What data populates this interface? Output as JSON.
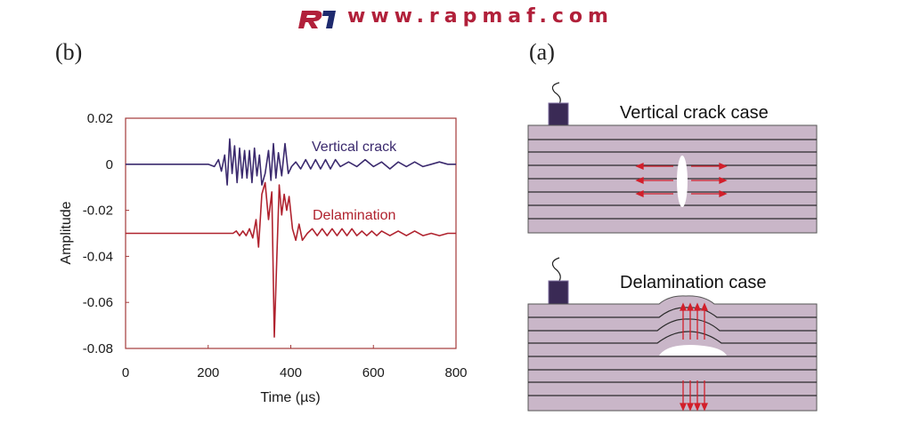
{
  "header": {
    "url_text": "www.rapmaf.com",
    "brand_color": "#b1203a"
  },
  "panels": {
    "left_label": "(b)",
    "right_label": "(a)"
  },
  "chart_data": {
    "type": "line",
    "xlabel": "Time (µs)",
    "ylabel": "Amplitude",
    "xlim": [
      0,
      800
    ],
    "ylim": [
      -0.08,
      0.02
    ],
    "xticks": [
      "0",
      "200",
      "400",
      "600",
      "800"
    ],
    "yticks": [
      "0.02",
      "0",
      "-0.02",
      "-0.04",
      "-0.06",
      "-0.08"
    ],
    "grid": false,
    "series": [
      {
        "name": "Vertical crack",
        "color": "#3b2a6e",
        "points": [
          [
            0,
            0
          ],
          [
            180,
            0
          ],
          [
            200,
            0.0
          ],
          [
            215,
            -0.001
          ],
          [
            225,
            0.002
          ],
          [
            232,
            -0.003
          ],
          [
            240,
            0.004
          ],
          [
            246,
            -0.009
          ],
          [
            252,
            0.011
          ],
          [
            258,
            -0.004
          ],
          [
            264,
            0.008
          ],
          [
            270,
            -0.008
          ],
          [
            276,
            0.007
          ],
          [
            282,
            -0.006
          ],
          [
            288,
            0.006
          ],
          [
            294,
            -0.006
          ],
          [
            300,
            0.006
          ],
          [
            306,
            -0.008
          ],
          [
            312,
            0.007
          ],
          [
            318,
            -0.005
          ],
          [
            324,
            0.004
          ],
          [
            330,
            -0.009
          ],
          [
            338,
            -0.004
          ],
          [
            346,
            0.006
          ],
          [
            352,
            -0.007
          ],
          [
            358,
            0.009
          ],
          [
            364,
            -0.006
          ],
          [
            370,
            0.005
          ],
          [
            378,
            -0.005
          ],
          [
            386,
            0.009
          ],
          [
            394,
            -0.004
          ],
          [
            402,
            -0.001
          ],
          [
            412,
            0.001
          ],
          [
            424,
            -0.002
          ],
          [
            436,
            0.002
          ],
          [
            448,
            -0.002
          ],
          [
            460,
            0.002
          ],
          [
            472,
            -0.002
          ],
          [
            484,
            0.002
          ],
          [
            496,
            -0.002
          ],
          [
            508,
            0.002
          ],
          [
            520,
            -0.001
          ],
          [
            540,
            0.001
          ],
          [
            560,
            -0.001
          ],
          [
            580,
            0.002
          ],
          [
            600,
            -0.001
          ],
          [
            620,
            0.001
          ],
          [
            640,
            -0.002
          ],
          [
            660,
            0.001
          ],
          [
            680,
            -0.001
          ],
          [
            700,
            0.001
          ],
          [
            720,
            -0.001
          ],
          [
            740,
            0.0
          ],
          [
            760,
            0.001
          ],
          [
            780,
            0.0
          ],
          [
            800,
            0.0
          ]
        ]
      },
      {
        "name": "Delamination",
        "color": "#b0232f",
        "points": [
          [
            0,
            -0.03
          ],
          [
            260,
            -0.03
          ],
          [
            268,
            -0.029
          ],
          [
            276,
            -0.031
          ],
          [
            284,
            -0.029
          ],
          [
            292,
            -0.031
          ],
          [
            300,
            -0.028
          ],
          [
            308,
            -0.032
          ],
          [
            316,
            -0.024
          ],
          [
            322,
            -0.036
          ],
          [
            330,
            -0.013
          ],
          [
            338,
            -0.008
          ],
          [
            346,
            -0.024
          ],
          [
            354,
            -0.012
          ],
          [
            360,
            -0.075
          ],
          [
            366,
            -0.042
          ],
          [
            372,
            -0.009
          ],
          [
            378,
            -0.022
          ],
          [
            384,
            -0.013
          ],
          [
            390,
            -0.02
          ],
          [
            396,
            -0.014
          ],
          [
            404,
            -0.028
          ],
          [
            412,
            -0.033
          ],
          [
            420,
            -0.026
          ],
          [
            428,
            -0.033
          ],
          [
            440,
            -0.03
          ],
          [
            452,
            -0.028
          ],
          [
            464,
            -0.031
          ],
          [
            476,
            -0.028
          ],
          [
            488,
            -0.031
          ],
          [
            500,
            -0.028
          ],
          [
            512,
            -0.031
          ],
          [
            524,
            -0.028
          ],
          [
            536,
            -0.031
          ],
          [
            548,
            -0.028
          ],
          [
            560,
            -0.031
          ],
          [
            572,
            -0.029
          ],
          [
            584,
            -0.031
          ],
          [
            596,
            -0.029
          ],
          [
            608,
            -0.031
          ],
          [
            620,
            -0.029
          ],
          [
            640,
            -0.031
          ],
          [
            660,
            -0.029
          ],
          [
            680,
            -0.031
          ],
          [
            700,
            -0.029
          ],
          [
            720,
            -0.031
          ],
          [
            740,
            -0.03
          ],
          [
            760,
            -0.031
          ],
          [
            780,
            -0.03
          ],
          [
            800,
            -0.03
          ]
        ]
      }
    ]
  },
  "diagram": {
    "top_case_title": "Vertical crack case",
    "bottom_case_title": "Delamination case",
    "plate_color": "#c9b6c8",
    "arrow_color": "#d21f2b",
    "sensor_color": "#3a2a55"
  }
}
